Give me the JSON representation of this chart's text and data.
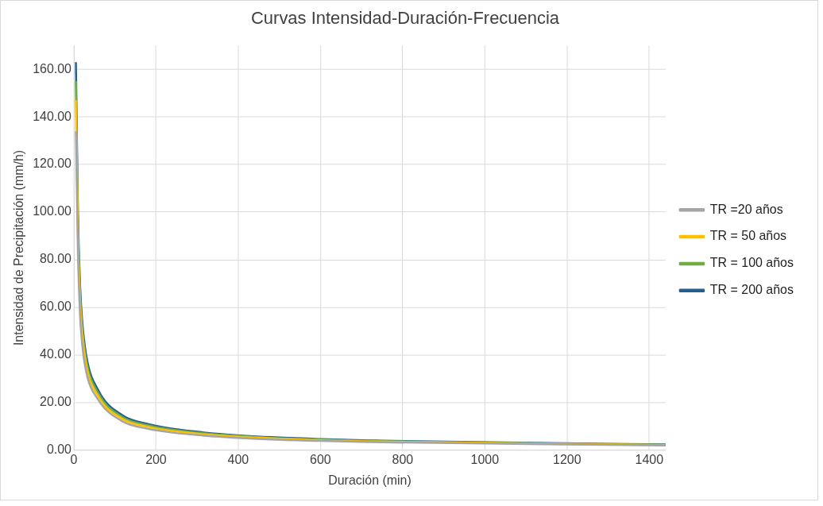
{
  "chart_data": {
    "type": "line",
    "title": "Curvas Intensidad-Duración-Frecuencia",
    "xlabel": "Duración (min)",
    "ylabel": "Intensidad de Precipitación (mm/h)",
    "x": [
      5,
      10,
      15,
      20,
      30,
      60,
      120,
      180,
      240,
      360,
      480,
      600,
      720,
      1440
    ],
    "series": [
      {
        "name": "TR =20 años",
        "color": "#a5a5a5",
        "values": [
          134,
          82,
          57,
          45,
          33,
          21,
          12,
          9,
          7.4,
          5.6,
          4.5,
          3.9,
          3.4,
          2
        ]
      },
      {
        "name": "TR = 50 años",
        "color": "#ffc000",
        "values": [
          147,
          90,
          63,
          50,
          36,
          22.5,
          13,
          9.9,
          8.1,
          6.1,
          5,
          4.2,
          3.7,
          2.2
        ]
      },
      {
        "name": "TR = 100 años",
        "color": "#70ad47",
        "values": [
          155,
          95,
          66,
          52,
          38,
          23.8,
          13.8,
          10.5,
          8.6,
          6.5,
          5.2,
          4.5,
          3.9,
          2.3
        ]
      },
      {
        "name": "TR = 200 años",
        "color": "#255e91",
        "values": [
          163,
          100,
          70,
          55,
          40,
          25,
          14.5,
          11,
          9,
          6.8,
          5.5,
          4.7,
          4.1,
          2.4
        ]
      }
    ],
    "xlim": [
      0,
      1440
    ],
    "xticks": [
      0,
      200,
      400,
      600,
      800,
      1000,
      1200,
      1400
    ],
    "ylim": [
      0,
      170
    ],
    "yticks": [
      {
        "value": 0,
        "label": "0.00"
      },
      {
        "value": 20,
        "label": "20.00"
      },
      {
        "value": 40,
        "label": "40.00"
      },
      {
        "value": 60,
        "label": "60.00"
      },
      {
        "value": 80,
        "label": "80.00"
      },
      {
        "value": 100,
        "label": "100.00"
      },
      {
        "value": 120,
        "label": "120.00"
      },
      {
        "value": 140,
        "label": "140.00"
      },
      {
        "value": 160,
        "label": "160.00"
      }
    ],
    "grid": true,
    "legend": "right",
    "marker": "none",
    "line_style": "solid"
  }
}
